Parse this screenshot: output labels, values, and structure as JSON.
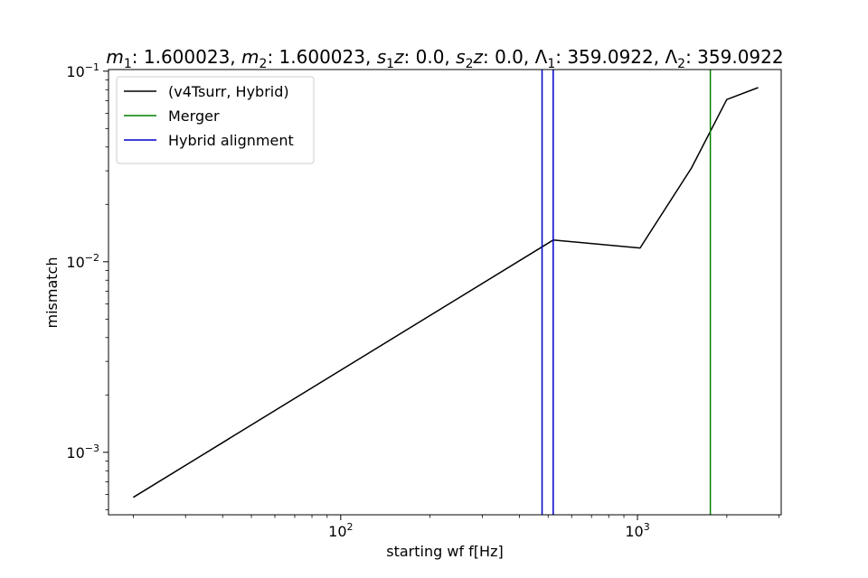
{
  "chart_data": {
    "type": "line",
    "title": "m1: 1.600023, m2: 1.600023, s1z: 0.0, s2z: 0.0, Λ1: 359.0922, Λ2: 359.0922",
    "title_parts": [
      {
        "text": "m",
        "style": "italic"
      },
      {
        "text": "1",
        "style": "sub"
      },
      {
        "text": ": 1.600023, ",
        "style": "normal"
      },
      {
        "text": "m",
        "style": "italic"
      },
      {
        "text": "2",
        "style": "sub"
      },
      {
        "text": ": 1.600023, ",
        "style": "normal"
      },
      {
        "text": "s",
        "style": "italic"
      },
      {
        "text": "1",
        "style": "sub"
      },
      {
        "text": "z",
        "style": "italic"
      },
      {
        "text": ": 0.0, ",
        "style": "normal"
      },
      {
        "text": "s",
        "style": "italic"
      },
      {
        "text": "2",
        "style": "sub"
      },
      {
        "text": "z",
        "style": "italic"
      },
      {
        "text": ": 0.0, Λ",
        "style": "normal"
      },
      {
        "text": "1",
        "style": "sub"
      },
      {
        "text": ": 359.0922, Λ",
        "style": "normal"
      },
      {
        "text": "2",
        "style": "sub"
      },
      {
        "text": ": 359.0922",
        "style": "normal"
      }
    ],
    "xlabel": "starting wf f[Hz]",
    "ylabel": "mismatch",
    "xscale": "log",
    "yscale": "log",
    "xlim": [
      16.5,
      3050
    ],
    "ylim": [
      0.00047,
      0.102
    ],
    "grid": false,
    "legend_position": "top-left",
    "x_ticks": [
      {
        "value": 100,
        "base": "10",
        "exp": "2"
      },
      {
        "value": 1000,
        "base": "10",
        "exp": "3"
      }
    ],
    "y_ticks": [
      {
        "value": 0.001,
        "base": "10",
        "exp": "−3"
      },
      {
        "value": 0.01,
        "base": "10",
        "exp": "−2"
      },
      {
        "value": 0.1,
        "base": "10",
        "exp": "−1"
      }
    ],
    "series": [
      {
        "name": "(v4Tsurr, Hybrid)",
        "color": "#000000",
        "x": [
          20,
          520,
          1020,
          1520,
          2000,
          2550
        ],
        "y": [
          0.00058,
          0.013,
          0.0118,
          0.031,
          0.071,
          0.082
        ]
      }
    ],
    "vlines": [
      {
        "name": "Merger",
        "color": "#008000",
        "x": [
          1760
        ]
      },
      {
        "name": "Hybrid alignment",
        "color": "#0000cc",
        "x": [
          477,
          520
        ]
      }
    ]
  }
}
